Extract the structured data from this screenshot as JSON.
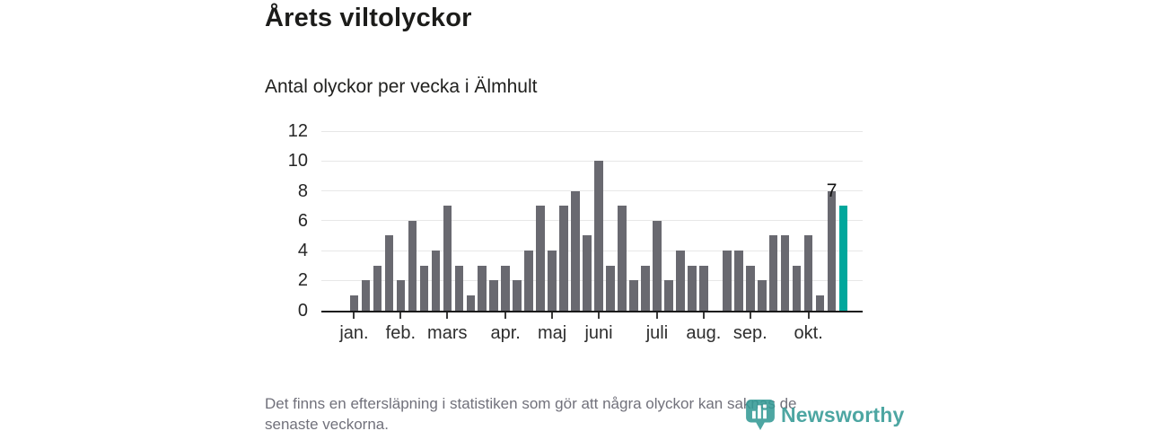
{
  "header": {
    "title": "Årets viltolyckor",
    "subtitle": "Antal olyckor per vecka i Älmhult"
  },
  "chart_data": {
    "type": "bar",
    "title": "Årets viltolyckor",
    "subtitle": "Antal olyckor per vecka i Älmhult",
    "xlabel": "",
    "ylabel": "",
    "x_unit": "vecka",
    "values": [
      1,
      2,
      3,
      5,
      2,
      6,
      3,
      4,
      7,
      3,
      1,
      3,
      2,
      3,
      2,
      4,
      7,
      4,
      7,
      8,
      5,
      10,
      3,
      7,
      2,
      3,
      6,
      2,
      4,
      3,
      3,
      0,
      4,
      4,
      3,
      2,
      5,
      5,
      3,
      5,
      1,
      8,
      7
    ],
    "highlight_index": 42,
    "annotation": {
      "text": "7",
      "week_index": 42
    },
    "month_ticks": [
      {
        "label": "jan.",
        "week_index": 0
      },
      {
        "label": "feb.",
        "week_index": 4
      },
      {
        "label": "mars",
        "week_index": 8
      },
      {
        "label": "apr.",
        "week_index": 13
      },
      {
        "label": "maj",
        "week_index": 17
      },
      {
        "label": "juni",
        "week_index": 21
      },
      {
        "label": "juli",
        "week_index": 26
      },
      {
        "label": "aug.",
        "week_index": 30
      },
      {
        "label": "sep.",
        "week_index": 34
      },
      {
        "label": "okt.",
        "week_index": 39
      }
    ],
    "ylim": [
      0,
      12
    ],
    "yticks": [
      0,
      2,
      4,
      6,
      8,
      10,
      12
    ],
    "grid": "horizontal",
    "legend": "none",
    "colors": {
      "bar": "#696970",
      "highlight": "#00a79c",
      "gridline": "#e7e7e7",
      "axis": "#1a1a1a"
    }
  },
  "footer": {
    "disclaimer_lines": [
      "Det finns en eftersläpning i statistiken som gör att några olyckor kan saknas de",
      "senaste veckorna."
    ]
  },
  "logo": {
    "name": "Newsworthy",
    "color": "#359a96"
  }
}
